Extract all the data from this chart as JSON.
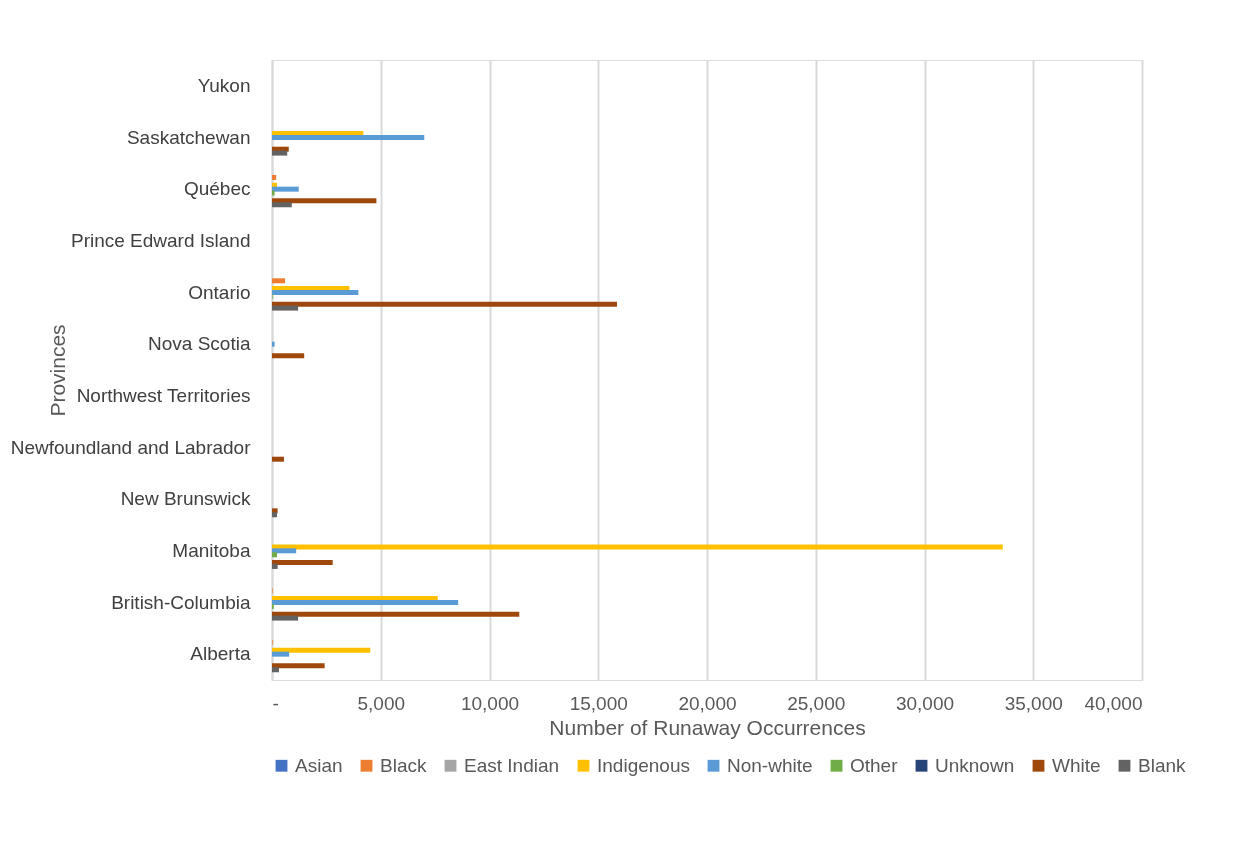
{
  "chart_data": {
    "type": "bar",
    "orientation": "horizontal",
    "xlabel": "Number of Runaway Occurrences",
    "ylabel": "Provinces",
    "categories": [
      "Yukon",
      "Saskatchewan",
      "Québec",
      "Prince Edward Island",
      "Ontario",
      "Nova Scotia",
      "Northwest Territories",
      "Newfoundland and Labrador",
      "New Brunswick",
      "Manitoba",
      "British-Columbia",
      "Alberta"
    ],
    "series": [
      {
        "name": "Asian",
        "color": "#4472c4",
        "values": [
          0,
          0,
          0,
          0,
          0,
          0,
          0,
          0,
          0,
          0,
          0,
          0
        ]
      },
      {
        "name": "Black",
        "color": "#ed7d31",
        "values": [
          0,
          0,
          190,
          0,
          600,
          0,
          0,
          0,
          null,
          0,
          30,
          30
        ]
      },
      {
        "name": "East Indian",
        "color": "#a5a5a5",
        "values": [
          0,
          0,
          0,
          0,
          0,
          0,
          0,
          0,
          0,
          0,
          0,
          0
        ]
      },
      {
        "name": "Indigenous",
        "color": "#ffc000",
        "values": [
          0,
          4200,
          230,
          0,
          3560,
          0,
          0,
          0,
          0,
          33600,
          7620,
          4520
        ]
      },
      {
        "name": "Non-white",
        "color": "#5b9bd5",
        "values": [
          0,
          7000,
          1230,
          0,
          3970,
          120,
          0,
          0,
          0,
          1110,
          8560,
          790
        ]
      },
      {
        "name": "Other",
        "color": "#70ad47",
        "values": [
          0,
          0,
          120,
          0,
          30,
          0,
          0,
          0,
          0,
          230,
          80,
          0
        ]
      },
      {
        "name": "Unknown",
        "color": "#264478",
        "values": [
          0,
          0,
          0,
          0,
          0,
          0,
          0,
          0,
          0,
          0,
          0,
          0
        ]
      },
      {
        "name": "White",
        "color": "#9e480e",
        "values": [
          0,
          770,
          4800,
          0,
          15860,
          1480,
          0,
          550,
          260,
          2790,
          11370,
          2420
        ]
      },
      {
        "name": "Blank",
        "color": "#636363",
        "values": [
          0,
          700,
          910,
          0,
          1200,
          null,
          0,
          null,
          230,
          260,
          1200,
          320
        ]
      }
    ],
    "xlim": [
      0,
      40000
    ],
    "xticks": [
      {
        "value": 0,
        "label": "-"
      },
      {
        "value": 5000,
        "label": "5,000"
      },
      {
        "value": 10000,
        "label": "10,000"
      },
      {
        "value": 15000,
        "label": "15,000"
      },
      {
        "value": 20000,
        "label": "20,000"
      },
      {
        "value": 25000,
        "label": "25,000"
      },
      {
        "value": 30000,
        "label": "30,000"
      },
      {
        "value": 35000,
        "label": "35,000"
      },
      {
        "value": 40000,
        "label": "40,000"
      }
    ],
    "grid": "x",
    "legend": "bottom"
  }
}
